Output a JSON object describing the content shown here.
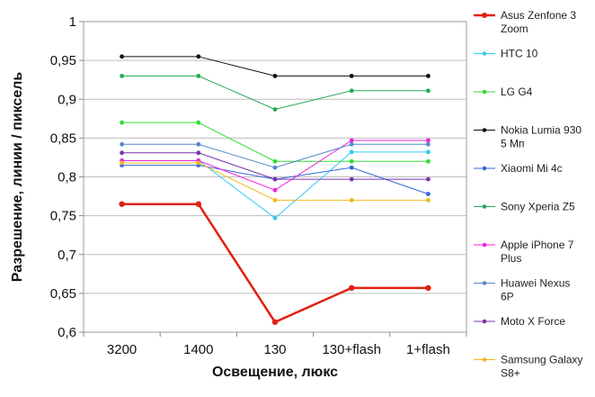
{
  "chart_data": {
    "type": "line",
    "title": "",
    "xlabel": "Освещение,  люкс",
    "ylabel": "Разрешение,  линии / пиксель",
    "categories": [
      "3200",
      "1400",
      "130",
      "130+flash",
      "1+flash"
    ],
    "ylim": [
      0.6,
      1.0
    ],
    "yticks": [
      0.6,
      0.65,
      0.7,
      0.75,
      0.8,
      0.85,
      0.9,
      0.95,
      1
    ],
    "ytick_labels": [
      "0,6",
      "0,65",
      "0,7",
      "0,75",
      "0,8",
      "0,85",
      "0,9",
      "0,95",
      "1"
    ],
    "grid": "horizontal",
    "legend_position": "right",
    "series": [
      {
        "name": "Asus Zenfone 3 Zoom",
        "legend_lines": [
          "Asus Zenfone 3",
          "Zoom"
        ],
        "color": "#e02010",
        "values": [
          0.765,
          0.765,
          0.613,
          0.657,
          0.657
        ]
      },
      {
        "name": "HTC 10",
        "legend_lines": [
          "HTC 10"
        ],
        "color": "#33ccee",
        "values": [
          0.821,
          0.821,
          0.747,
          0.832,
          0.832
        ]
      },
      {
        "name": "LG G4",
        "legend_lines": [
          "LG G4"
        ],
        "color": "#33dd33",
        "values": [
          0.87,
          0.87,
          0.82,
          0.82,
          0.82
        ]
      },
      {
        "name": "Nokia Lumia 930 5 Мп",
        "legend_lines": [
          "Nokia Lumia 930",
          "5 Мп"
        ],
        "color": "#111111",
        "values": [
          0.955,
          0.955,
          0.93,
          0.93,
          0.93
        ]
      },
      {
        "name": "Xiaomi Mi 4c",
        "legend_lines": [
          "Xiaomi Mi 4c"
        ],
        "color": "#3366dd",
        "values": [
          0.815,
          0.815,
          0.797,
          0.812,
          0.778
        ]
      },
      {
        "name": "Sony Xperia Z5",
        "legend_lines": [
          "Sony Xperia Z5"
        ],
        "color": "#22aa55",
        "values": [
          0.93,
          0.93,
          0.887,
          0.911,
          0.911
        ]
      },
      {
        "name": "Apple iPhone 7 Plus",
        "legend_lines": [
          "Apple iPhone 7",
          "Plus"
        ],
        "color": "#ee22dd",
        "values": [
          0.821,
          0.821,
          0.783,
          0.847,
          0.847
        ]
      },
      {
        "name": "Huawei Nexus 6P",
        "legend_lines": [
          "Huawei Nexus",
          "6P"
        ],
        "color": "#5588cc",
        "values": [
          0.842,
          0.842,
          0.812,
          0.842,
          0.842
        ]
      },
      {
        "name": "Moto X Force",
        "legend_lines": [
          "Moto X Force"
        ],
        "color": "#7733aa",
        "values": [
          0.831,
          0.831,
          0.797,
          0.797,
          0.797
        ]
      },
      {
        "name": "Samsung Galaxy S8+",
        "legend_lines": [
          "Samsung Galaxy",
          "S8+"
        ],
        "color": "#f0b820",
        "values": [
          0.818,
          0.818,
          0.77,
          0.77,
          0.77
        ]
      }
    ]
  }
}
